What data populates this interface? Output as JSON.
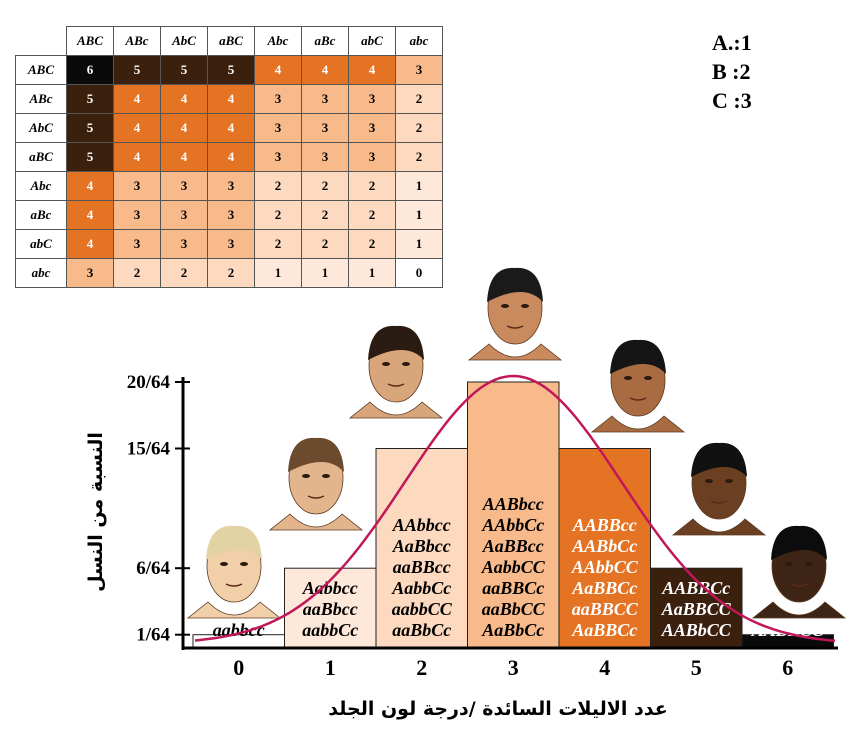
{
  "legend": [
    "A.:1",
    "B :2",
    "C :3"
  ],
  "punnett": {
    "gametes": [
      "ABC",
      "ABc",
      "AbC",
      "aBC",
      "Abc",
      "aBc",
      "abC",
      "abc"
    ],
    "counts": [
      [
        6,
        5,
        5,
        5,
        4,
        4,
        4,
        3
      ],
      [
        5,
        4,
        4,
        4,
        3,
        3,
        3,
        2
      ],
      [
        5,
        4,
        4,
        4,
        3,
        3,
        3,
        2
      ],
      [
        5,
        4,
        4,
        4,
        3,
        3,
        3,
        2
      ],
      [
        4,
        3,
        3,
        3,
        2,
        2,
        2,
        1
      ],
      [
        4,
        3,
        3,
        3,
        2,
        2,
        2,
        1
      ],
      [
        4,
        3,
        3,
        3,
        2,
        2,
        2,
        1
      ],
      [
        3,
        2,
        2,
        2,
        1,
        1,
        1,
        0
      ]
    ],
    "colors": {
      "0": "#ffffff",
      "1": "#fde8da",
      "2": "#fcd9bf",
      "3": "#f8b98b",
      "4": "#e57324",
      "5": "#3b200e",
      "6": "#0a0a0a"
    }
  },
  "chart_data": {
    "type": "bar",
    "xlabel": "عدد الاليلات السائدة /درجة لون الجلد",
    "ylabel": "النسبة من النسل",
    "categories": [
      "0",
      "1",
      "2",
      "3",
      "4",
      "5",
      "6"
    ],
    "values": [
      1,
      6,
      15,
      20,
      15,
      6,
      1
    ],
    "ytick_labels": [
      "1/64",
      "6/64",
      "15/64",
      "20/64"
    ],
    "ytick_values": [
      1,
      6,
      15,
      20
    ],
    "ylim": [
      0,
      20
    ],
    "bar_colors": [
      "#ffffff",
      "#fde8da",
      "#fcd9bf",
      "#f8b98b",
      "#e57324",
      "#3b200e",
      "#0a0a0a"
    ],
    "bar_text_colors": [
      "#000000",
      "#000000",
      "#000000",
      "#000000",
      "#ffffff",
      "#ffffff",
      "#ffffff"
    ],
    "genotypes": [
      [
        "aabbcc"
      ],
      [
        "Aabbcc",
        "aaBbcc",
        "aabbCc"
      ],
      [
        "AAbbcc",
        "AaBbcc",
        "aaBBcc",
        "AabbCc",
        "aabbCC",
        "aaBbCc"
      ],
      [
        "AABbcc",
        "AAbbCc",
        "AaBBcc",
        "AabbCC",
        "aaBBCc",
        "aaBbCC",
        "AaBbCc"
      ],
      [
        "AABBcc",
        "AABbCc",
        "AAbbCC",
        "AaBBCc",
        "aaBBCC",
        "AaBBCc"
      ],
      [
        "AABBCc",
        "AaBBCC",
        "AABbCC"
      ],
      [
        "AABBCC"
      ]
    ],
    "curve": true,
    "curve_color": "#c0185a"
  }
}
